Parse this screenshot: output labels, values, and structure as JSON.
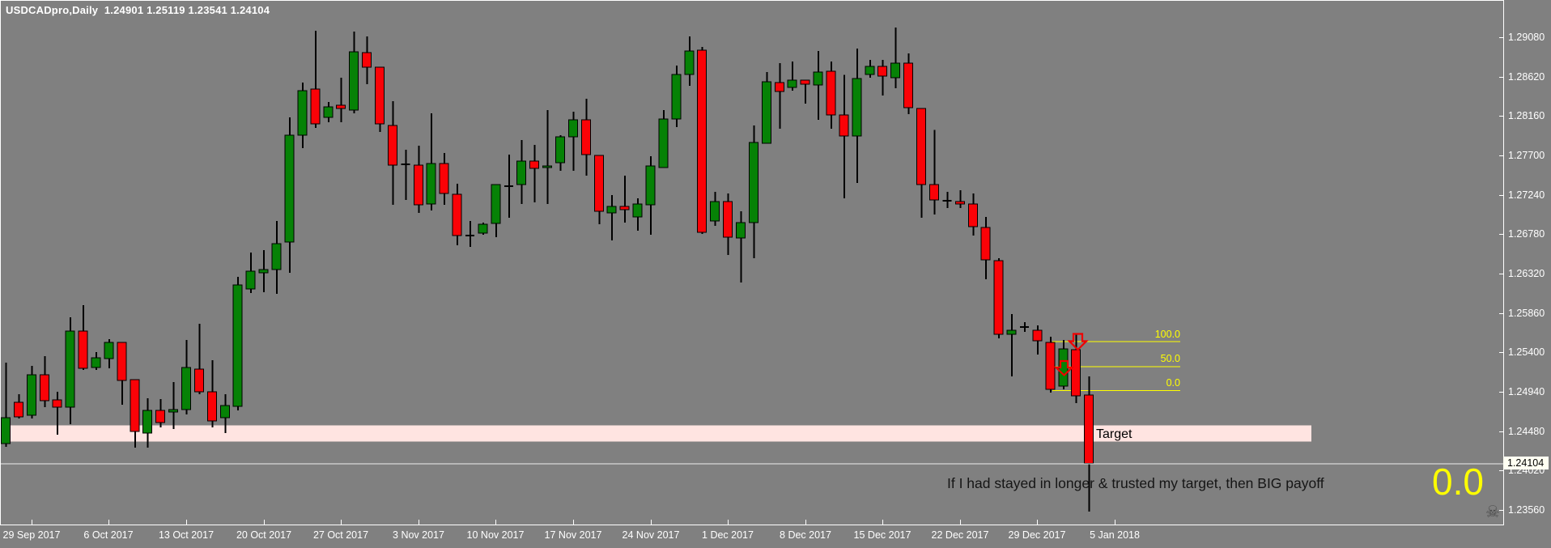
{
  "window": {
    "title": "USDCADpro,Daily  1.24901 1.25119 1.23541 1.24104"
  },
  "colors": {
    "background": "#808080",
    "bull": "#068206",
    "bear": "#fb0207",
    "candle_border": "#000000",
    "wick": "#000000",
    "axis_text": "#ffffff",
    "window_border": "#ffffff",
    "fib": "#ffff00",
    "bid_line": "#eeeeee",
    "target_zone_fill": "#ffe4e1",
    "annotation_text": "#151515",
    "arrow": "#f00000",
    "skull": "#4b4b4b",
    "price_box_bg": "#fffff2",
    "price_box_text": "#000000"
  },
  "chart_data": {
    "type": "candlestick",
    "symbol": "USDCADpro",
    "timeframe": "Daily",
    "title": "USDCADpro,Daily",
    "ohlc_readout": {
      "open": "1.24901",
      "high": "1.25119",
      "low": "1.23541",
      "close": "1.24104"
    },
    "y_axis": {
      "tick_labels": [
        "1.29080",
        "1.28620",
        "1.28160",
        "1.27700",
        "1.27240",
        "1.26780",
        "1.26320",
        "1.25860",
        "1.25400",
        "1.24940",
        "1.24480",
        "1.24020",
        "1.23560"
      ],
      "current_price": "1.24104",
      "current_price_value": 1.24104,
      "grid": false
    },
    "x_axis": {
      "tick_labels": [
        "29 Sep 2017",
        "6 Oct 2017",
        "13 Oct 2017",
        "20 Oct 2017",
        "27 Oct 2017",
        "3 Nov 2017",
        "10 Nov 2017",
        "17 Nov 2017",
        "24 Nov 2017",
        "1 Dec 2017",
        "8 Dec 2017",
        "15 Dec 2017",
        "22 Dec 2017",
        "29 Dec 2017",
        "5 Jan 2018"
      ]
    },
    "candles": [
      [
        1.24335,
        1.2528,
        1.24297,
        1.24638
      ],
      [
        1.24817,
        1.24912,
        1.24628,
        1.24647
      ],
      [
        1.24666,
        1.25242,
        1.24628,
        1.25138
      ],
      [
        1.25138,
        1.25356,
        1.2476,
        1.24836
      ],
      [
        1.24845,
        1.2494,
        1.24439,
        1.2476
      ],
      [
        1.2476,
        1.25809,
        1.24562,
        1.25649
      ],
      [
        1.25649,
        1.25951,
        1.25195,
        1.25214
      ],
      [
        1.25224,
        1.25403,
        1.25195,
        1.25337
      ],
      [
        1.25328,
        1.25554,
        1.25214,
        1.25517
      ],
      [
        1.25517,
        1.25517,
        1.24789,
        1.25072
      ],
      [
        1.25082,
        1.25082,
        1.24288,
        1.24477
      ],
      [
        1.24458,
        1.24864,
        1.24288,
        1.24723
      ],
      [
        1.24723,
        1.24855,
        1.24524,
        1.24581
      ],
      [
        1.24704,
        1.25054,
        1.24505,
        1.24732
      ],
      [
        1.24732,
        1.25545,
        1.24675,
        1.25224
      ],
      [
        1.25205,
        1.25734,
        1.24912,
        1.2494
      ],
      [
        1.2494,
        1.25308,
        1.24524,
        1.246
      ],
      [
        1.24638,
        1.24912,
        1.24458,
        1.2478
      ],
      [
        1.2477,
        1.26282,
        1.24723,
        1.26188
      ],
      [
        1.2614,
        1.26566,
        1.26093,
        1.26348
      ],
      [
        1.26329,
        1.26594,
        1.26103,
        1.26367
      ],
      [
        1.26367,
        1.26934,
        1.26084,
        1.2667
      ],
      [
        1.26688,
        1.28144,
        1.26329,
        1.27936
      ],
      [
        1.27936,
        1.28551,
        1.27785,
        1.28456
      ],
      [
        1.28475,
        1.29156,
        1.28022,
        1.28069
      ],
      [
        1.28144,
        1.28324,
        1.28088,
        1.28267
      ],
      [
        1.28286,
        1.28608,
        1.28088,
        1.28248
      ],
      [
        1.28229,
        1.29146,
        1.28191,
        1.2891
      ],
      [
        1.289,
        1.29089,
        1.28532,
        1.2873
      ],
      [
        1.2873,
        1.2873,
        1.27974,
        1.28069
      ],
      [
        1.2805,
        1.28333,
        1.27123,
        1.27587
      ],
      [
        1.27596,
        1.27766,
        1.2718,
        1.27596
      ],
      [
        1.27587,
        1.27813,
        1.27029,
        1.27123
      ],
      [
        1.27133,
        1.28191,
        1.27057,
        1.27605
      ],
      [
        1.27605,
        1.27728,
        1.27123,
        1.27256
      ],
      [
        1.27246,
        1.27369,
        1.26651,
        1.26764
      ],
      [
        1.26764,
        1.26934,
        1.26632,
        1.26764
      ],
      [
        1.26792,
        1.26915,
        1.26773,
        1.26896
      ],
      [
        1.26905,
        1.27359,
        1.26745,
        1.27359
      ],
      [
        1.27341,
        1.27709,
        1.26972,
        1.27341
      ],
      [
        1.27359,
        1.27879,
        1.27133,
        1.27634
      ],
      [
        1.27634,
        1.27823,
        1.27152,
        1.27549
      ],
      [
        1.27558,
        1.28229,
        1.27133,
        1.27577
      ],
      [
        1.27615,
        1.27936,
        1.2752,
        1.27917
      ],
      [
        1.27917,
        1.2821,
        1.2752,
        1.28116
      ],
      [
        1.28116,
        1.28361,
        1.27464,
        1.27709
      ],
      [
        1.277,
        1.277,
        1.26896,
        1.27048
      ],
      [
        1.27029,
        1.27237,
        1.26707,
        1.27104
      ],
      [
        1.27104,
        1.27464,
        1.26915,
        1.27067
      ],
      [
        1.26981,
        1.27199,
        1.26821,
        1.27133
      ],
      [
        1.27123,
        1.2769,
        1.26773,
        1.27577
      ],
      [
        1.27558,
        1.28229,
        1.27558,
        1.28125
      ],
      [
        1.28125,
        1.28749,
        1.28031,
        1.28645
      ],
      [
        1.28645,
        1.29089,
        1.28513,
        1.28919
      ],
      [
        1.28929,
        1.28966,
        1.26783,
        1.26802
      ],
      [
        1.26934,
        1.27275,
        1.26877,
        1.27161
      ],
      [
        1.27161,
        1.27256,
        1.26538,
        1.26745
      ],
      [
        1.26736,
        1.27048,
        1.26216,
        1.26915
      ],
      [
        1.26915,
        1.2805,
        1.265,
        1.27851
      ],
      [
        1.27842,
        1.28674,
        1.27842,
        1.2856
      ],
      [
        1.28551,
        1.28778,
        1.28012,
        1.28447
      ],
      [
        1.28494,
        1.28797,
        1.28456,
        1.28579
      ],
      [
        1.28579,
        1.28579,
        1.28305,
        1.28532
      ],
      [
        1.28522,
        1.28919,
        1.28116,
        1.28674
      ],
      [
        1.28683,
        1.28797,
        1.2801,
        1.28172
      ],
      [
        1.28172,
        1.2864,
        1.27199,
        1.27927
      ],
      [
        1.27927,
        1.28948,
        1.27378,
        1.28598
      ],
      [
        1.28645,
        1.28815,
        1.28607,
        1.2874
      ],
      [
        1.2874,
        1.28815,
        1.284,
        1.28626
      ],
      [
        1.28607,
        1.29194,
        1.28485,
        1.28778
      ],
      [
        1.28778,
        1.28891,
        1.28182,
        1.28258
      ],
      [
        1.28248,
        1.28248,
        1.26972,
        1.27359
      ],
      [
        1.27359,
        1.28,
        1.2701,
        1.2718
      ],
      [
        1.2717,
        1.27275,
        1.27085,
        1.2717
      ],
      [
        1.27161,
        1.27293,
        1.27085,
        1.27133
      ],
      [
        1.27133,
        1.27256,
        1.26764,
        1.26868
      ],
      [
        1.26858,
        1.26981,
        1.26254,
        1.2648
      ],
      [
        1.26471,
        1.265,
        1.25564,
        1.25611
      ],
      [
        1.25611,
        1.25847,
        1.2512,
        1.25658
      ],
      [
        1.25696,
        1.25753,
        1.2564,
        1.25696
      ],
      [
        1.25658,
        1.25715,
        1.25375,
        1.25535
      ],
      [
        1.25516,
        1.25583,
        1.2493,
        1.24968
      ],
      [
        1.25006,
        1.25545,
        1.24968,
        1.25441
      ],
      [
        1.25431,
        1.25611,
        1.24808,
        1.24893
      ],
      [
        1.24901,
        1.25119,
        1.23541,
        1.24104
      ]
    ],
    "fib_retracement": {
      "levels": [
        {
          "label": "100.0",
          "price": 1.2553
        },
        {
          "label": "50.0",
          "price": 1.2524
        },
        {
          "label": "0.0",
          "price": 1.2496
        }
      ]
    },
    "target_zone": {
      "label": "Target",
      "price_top": 1.2455,
      "price_bottom": 1.2436
    },
    "bid_line_price": 1.24104,
    "annotations": {
      "note": "If I had stayed in longer & trusted my target, then BIG payoff",
      "result_label": "0.0",
      "skull": "☠"
    }
  }
}
